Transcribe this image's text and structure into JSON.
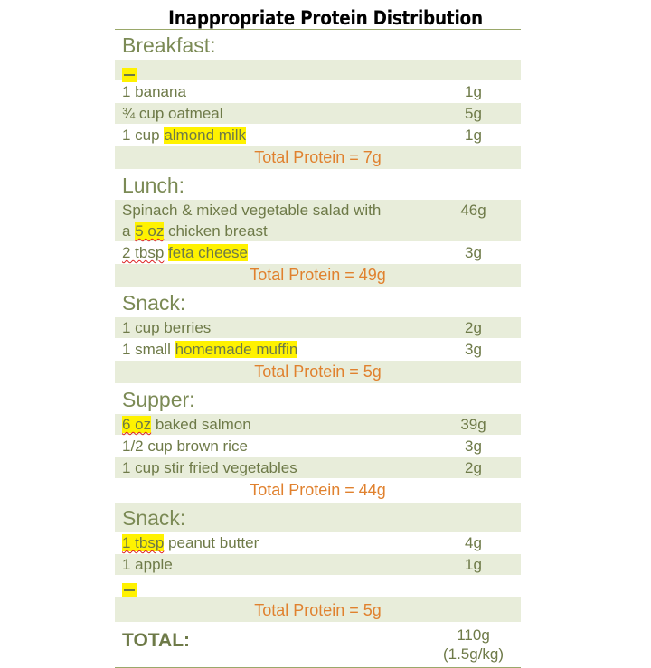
{
  "title": "Inappropriate Protein Distribution",
  "breakfast": {
    "heading": "Breakfast:",
    "items": [
      {
        "food": "1 banana",
        "protein": "1g"
      },
      {
        "food": "¾ cup oatmeal",
        "protein": "5g"
      },
      {
        "food_pre": "1 cup ",
        "food_hl": "almond milk",
        "protein": "1g"
      }
    ],
    "total": "Total Protein = 7g"
  },
  "lunch": {
    "heading": "Lunch:",
    "item1_line1": "Spinach & mixed vegetable salad with",
    "item1_pre": "a ",
    "item1_hl": "5 oz",
    "item1_post": " chicken breast",
    "item1_protein": "46g",
    "item2_pre": "2 tbsp",
    "item2_hl": "feta cheese",
    "item2_protein": "3g",
    "total": "Total Protein = 49g"
  },
  "snack1": {
    "heading": "Snack:",
    "item1": "1 cup berries",
    "item1_protein": "2g",
    "item2_pre": "1 small ",
    "item2_hl": "homemade muffin",
    "item2_protein": "3g",
    "total": "Total Protein = 5g"
  },
  "supper": {
    "heading": "Supper:",
    "item1_hl": "6 oz",
    "item1_post": " baked salmon",
    "item1_protein": "39g",
    "item2": "1/2 cup brown rice",
    "item2_protein": "3g",
    "item3": "1 cup stir fried vegetables",
    "item3_protein": "2g",
    "total": "Total Protein = 44g"
  },
  "snack2": {
    "heading": "Snack:",
    "item1_hl": "1 tbsp",
    "item1_post": " peanut butter",
    "item1_protein": "4g",
    "item2": "1 apple",
    "item2_protein": "1g",
    "total": "Total Protein = 5g"
  },
  "grand_total": {
    "label": "TOTAL:",
    "value": "110g",
    "per_kg": "(1.5g/kg)"
  },
  "colors": {
    "row_shade": "#e8edda",
    "text_green": "#6e7a48",
    "total_orange": "#e0812e",
    "highlight": "#fff200"
  }
}
